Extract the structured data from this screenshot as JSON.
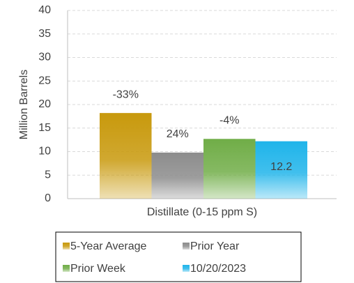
{
  "chart_data": {
    "type": "bar",
    "y_label": "Million Barrels",
    "categories": [
      "Distillate (0-15 ppm S)"
    ],
    "series": [
      {
        "name": "5-Year Average",
        "color": "#c8990c",
        "values": [
          18.2
        ]
      },
      {
        "name": "Prior Year",
        "color": "#8c8c8c",
        "values": [
          9.8
        ]
      },
      {
        "name": "Prior Week",
        "color": "#70ad47",
        "values": [
          12.7
        ]
      },
      {
        "name": "10/20/2023",
        "color": "#1fb4ea",
        "values": [
          12.2
        ]
      }
    ],
    "annotations": [
      "-33%",
      "24%",
      "-4%"
    ],
    "ylim": [
      0,
      40
    ],
    "yticks": [
      0,
      5,
      10,
      15,
      20,
      25,
      30,
      35,
      40
    ],
    "grid": true
  }
}
